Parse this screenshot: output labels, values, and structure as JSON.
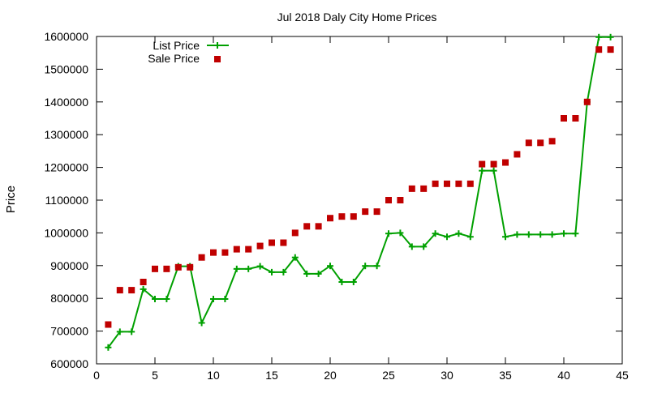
{
  "chart_data": {
    "type": "scatter",
    "title": "Jul 2018 Daly City Home Prices",
    "xlabel": "",
    "ylabel": "Price",
    "xlim": [
      0,
      45
    ],
    "ylim": [
      600000,
      1600000
    ],
    "xticks": [
      0,
      5,
      10,
      15,
      20,
      25,
      30,
      35,
      40,
      45
    ],
    "yticks": [
      600000,
      700000,
      800000,
      900000,
      1000000,
      1100000,
      1200000,
      1300000,
      1400000,
      1500000,
      1600000
    ],
    "legend_position": "top-left",
    "grid": false,
    "series": [
      {
        "name": "List Price",
        "style": "line-with-plus",
        "color": "#00a000",
        "x": [
          1,
          2,
          3,
          4,
          5,
          6,
          7,
          8,
          9,
          10,
          11,
          12,
          13,
          14,
          15,
          16,
          17,
          18,
          19,
          20,
          21,
          22,
          23,
          24,
          25,
          26,
          27,
          28,
          29,
          30,
          31,
          32,
          33,
          34,
          35,
          36,
          37,
          38,
          39,
          40,
          41,
          42,
          43,
          44
        ],
        "y": [
          650000,
          698000,
          698000,
          828000,
          798000,
          798000,
          898000,
          898000,
          725000,
          798000,
          798000,
          890000,
          890000,
          898000,
          880000,
          880000,
          925000,
          875000,
          875000,
          899000,
          850000,
          850000,
          899000,
          899000,
          998000,
          1000000,
          958000,
          958000,
          998000,
          988000,
          998000,
          988000,
          1190000,
          1190000,
          988000,
          995000,
          995000,
          995000,
          995000,
          998000,
          998000,
          1400000,
          1598000,
          1598000
        ]
      },
      {
        "name": "Sale Price",
        "style": "square-markers",
        "color": "#c00000",
        "x": [
          1,
          2,
          3,
          4,
          5,
          6,
          7,
          8,
          9,
          10,
          11,
          12,
          13,
          14,
          15,
          16,
          17,
          18,
          19,
          20,
          21,
          22,
          23,
          24,
          25,
          26,
          27,
          28,
          29,
          30,
          31,
          32,
          33,
          34,
          35,
          36,
          37,
          38,
          39,
          40,
          41,
          42,
          43,
          44
        ],
        "y": [
          720000,
          825000,
          825000,
          850000,
          890000,
          890000,
          895000,
          895000,
          925000,
          940000,
          940000,
          950000,
          950000,
          960000,
          970000,
          970000,
          1000000,
          1020000,
          1020000,
          1045000,
          1050000,
          1050000,
          1065000,
          1065000,
          1100000,
          1100000,
          1135000,
          1135000,
          1150000,
          1150000,
          1150000,
          1150000,
          1210000,
          1210000,
          1215000,
          1240000,
          1275000,
          1275000,
          1280000,
          1350000,
          1350000,
          1400000,
          1560000,
          1560000
        ]
      }
    ]
  }
}
